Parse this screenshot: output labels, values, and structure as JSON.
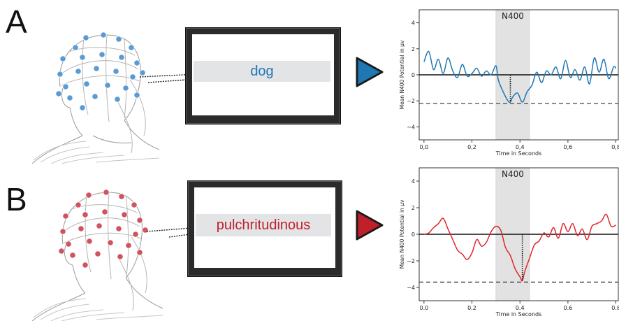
{
  "panels": [
    {
      "letter": "A",
      "word": "dog",
      "color": "#1f77b4",
      "electrode_color": "#5b9bd5"
    },
    {
      "letter": "B",
      "word": "pulchritudinous",
      "color": "#c0202a",
      "electrode_color": "#d0545c"
    }
  ],
  "chart_data": [
    {
      "type": "line",
      "title": "",
      "xlabel": "Time in Seconds",
      "ylabel": "Mean N400 Potential in μv",
      "xlim": [
        -0.02,
        0.81
      ],
      "ylim": [
        -5,
        5
      ],
      "xticks": [
        0.0,
        0.2,
        0.4,
        0.6,
        0.8
      ],
      "xtick_labels": [
        "0,0",
        "0,2",
        "0,4",
        "0,6",
        "0,8"
      ],
      "yticks": [
        -4,
        -2,
        0,
        2,
        4
      ],
      "ytick_labels": [
        "−4",
        "−2",
        "0",
        "2",
        "4"
      ],
      "window": {
        "label": "N400",
        "start": 0.3,
        "end": 0.44
      },
      "reference_line": -2.2,
      "peak": {
        "x": 0.36,
        "y": -2.1
      },
      "series": [
        {
          "color": "#1f77b4",
          "x": [
            0.0,
            0.02,
            0.04,
            0.06,
            0.08,
            0.1,
            0.12,
            0.14,
            0.16,
            0.18,
            0.2,
            0.22,
            0.24,
            0.26,
            0.28,
            0.3,
            0.31,
            0.33,
            0.35,
            0.36,
            0.37,
            0.39,
            0.41,
            0.43,
            0.45,
            0.47,
            0.49,
            0.51,
            0.53,
            0.55,
            0.57,
            0.59,
            0.61,
            0.63,
            0.65,
            0.67,
            0.69,
            0.71,
            0.73,
            0.75,
            0.77,
            0.79,
            0.8
          ],
          "y": [
            1.0,
            1.8,
            0.4,
            1.2,
            0.1,
            1.3,
            0.3,
            -0.2,
            0.8,
            -0.1,
            0.1,
            0.5,
            -0.1,
            0.3,
            0.0,
            0.7,
            -0.4,
            -1.3,
            -2.0,
            -2.1,
            -1.7,
            -1.4,
            -2.1,
            -1.3,
            -0.8,
            0.2,
            -0.6,
            0.3,
            0.0,
            0.6,
            -0.3,
            1.1,
            -0.2,
            0.4,
            -0.4,
            0.6,
            -0.7,
            1.3,
            0.2,
            1.2,
            -0.3,
            0.6,
            0.5
          ]
        }
      ]
    },
    {
      "type": "line",
      "title": "",
      "xlabel": "Time in Seconds",
      "ylabel": "Mean N400 Potential in μv",
      "xlim": [
        -0.02,
        0.81
      ],
      "ylim": [
        -5,
        5
      ],
      "xticks": [
        0.0,
        0.2,
        0.4,
        0.6,
        0.8
      ],
      "xtick_labels": [
        "0.0",
        "0.2",
        "0.4",
        "0.6",
        "0.8"
      ],
      "yticks": [
        -4,
        -2,
        0,
        2,
        4
      ],
      "ytick_labels": [
        "−4",
        "−2",
        "0",
        "2",
        "4"
      ],
      "window": {
        "label": "N400",
        "start": 0.3,
        "end": 0.44
      },
      "reference_line": -3.6,
      "peak": {
        "x": 0.41,
        "y": -3.5
      },
      "series": [
        {
          "color": "#e0242c",
          "x": [
            0.0,
            0.02,
            0.04,
            0.06,
            0.08,
            0.1,
            0.12,
            0.14,
            0.16,
            0.18,
            0.2,
            0.22,
            0.24,
            0.26,
            0.28,
            0.3,
            0.32,
            0.34,
            0.36,
            0.38,
            0.4,
            0.41,
            0.42,
            0.44,
            0.46,
            0.48,
            0.5,
            0.52,
            0.54,
            0.56,
            0.58,
            0.6,
            0.62,
            0.64,
            0.66,
            0.68,
            0.7,
            0.72,
            0.74,
            0.76,
            0.78,
            0.8
          ],
          "y": [
            0.0,
            0.1,
            0.5,
            0.8,
            1.2,
            0.4,
            -0.4,
            -1.2,
            -1.5,
            -1.9,
            -1.4,
            -0.4,
            -0.9,
            -0.6,
            0.2,
            0.6,
            0.3,
            -1.0,
            -1.6,
            -2.6,
            -3.2,
            -3.5,
            -2.8,
            -1.8,
            -0.8,
            -0.5,
            0.1,
            -0.2,
            0.5,
            -0.3,
            0.8,
            0.2,
            0.8,
            -0.1,
            0.4,
            -0.4,
            0.6,
            0.8,
            1.0,
            1.5,
            0.6,
            0.7
          ]
        }
      ]
    }
  ]
}
